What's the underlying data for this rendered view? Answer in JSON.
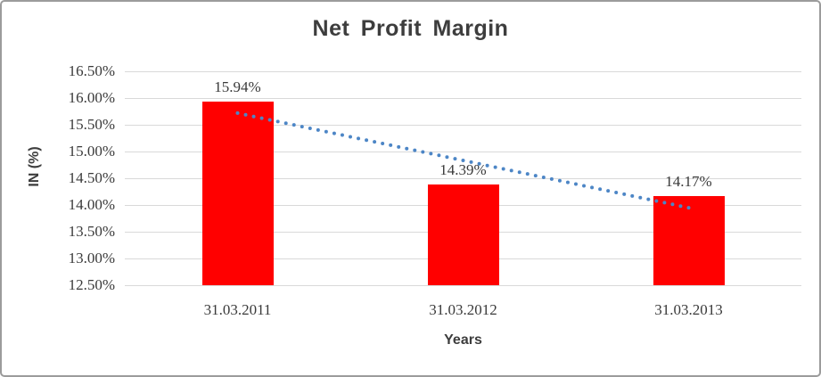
{
  "chart_data": {
    "type": "bar",
    "title": "Net Profit Margin",
    "xlabel": "Years",
    "ylabel": "IN (%)",
    "categories": [
      "31.03.2011",
      "31.03.2012",
      "31.03.2013"
    ],
    "values": [
      15.94,
      14.39,
      14.17
    ],
    "data_labels": [
      "15.94%",
      "14.39%",
      "14.17%"
    ],
    "y_ticks": [
      "16.50%",
      "16.00%",
      "15.50%",
      "15.00%",
      "14.50%",
      "14.00%",
      "13.50%",
      "13.00%",
      "12.50%"
    ],
    "ylim": [
      12.5,
      16.5
    ],
    "y_tick_step": 0.5,
    "grid": true,
    "legend": "none",
    "bar_color": "#ff0000",
    "trendline": {
      "type": "linear",
      "style": "dotted",
      "color": "#4d86c6"
    },
    "colors": {
      "gridline": "#d9d9d9",
      "text": "#3a3a3a",
      "title_text": "#3d3d3d",
      "chart_border": "#9b9b9b"
    }
  }
}
